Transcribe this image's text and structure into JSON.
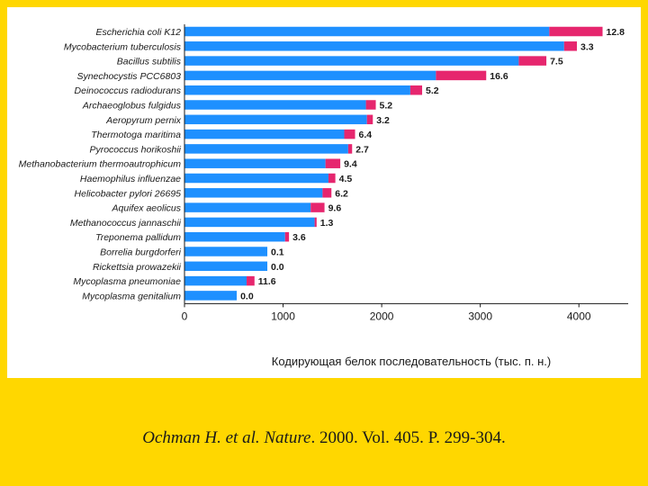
{
  "colors": {
    "background": "#FFD700",
    "panel": "#FFFFFF",
    "bar_blue": "#1E90FF",
    "bar_pink": "#E6266E"
  },
  "citation": {
    "authors": "Ochman H. et al.",
    "journal": "Nature",
    "details": ". 2000. Vol. 405. P. 299-304."
  },
  "chart_data": {
    "type": "bar",
    "orientation": "horizontal",
    "stacked": true,
    "xlabel": "Кодирующая белок последовательность (тыс. п. н.)",
    "xlim": [
      0,
      4500
    ],
    "xticks": [
      0,
      1000,
      2000,
      3000,
      4000
    ],
    "categories": [
      "Escherichia coli K12",
      "Mycobacterium tuberculosis",
      "Bacillus subtilis",
      "Synechocystis PCC6803",
      "Deinococcus radiodurans",
      "Archaeoglobus fulgidus",
      "Aeropyrum pernix",
      "Thermotoga maritima",
      "Pyrococcus horikoshii",
      "Methanobacterium thermoautrophicum",
      "Haemophilus influenzae",
      "Helicobacter pylori 26695",
      "Aquifex aeolicus",
      "Methanococcus jannaschii",
      "Treponema pallidum",
      "Borrelia burgdorferi",
      "Rickettsia prowazekii",
      "Mycoplasma pneumoniae",
      "Mycoplasma genitalium"
    ],
    "labels": [
      "12.8",
      "3.3",
      "7.5",
      "16.6",
      "5.2",
      "5.2",
      "3.2",
      "6.4",
      "2.7",
      "9.4",
      "4.5",
      "6.2",
      "9.6",
      "1.3",
      "3.6",
      "0.1",
      "0.0",
      "11.6",
      "0.0"
    ],
    "series": [
      {
        "values": [
          3700,
          3850,
          3390,
          2550,
          2290,
          1840,
          1850,
          1620,
          1660,
          1430,
          1460,
          1400,
          1280,
          1320,
          1020,
          840,
          840,
          630,
          530
        ]
      },
      {
        "values": [
          540,
          130,
          280,
          510,
          120,
          100,
          60,
          110,
          40,
          150,
          70,
          90,
          140,
          20,
          40,
          0,
          0,
          80,
          0
        ]
      }
    ]
  }
}
